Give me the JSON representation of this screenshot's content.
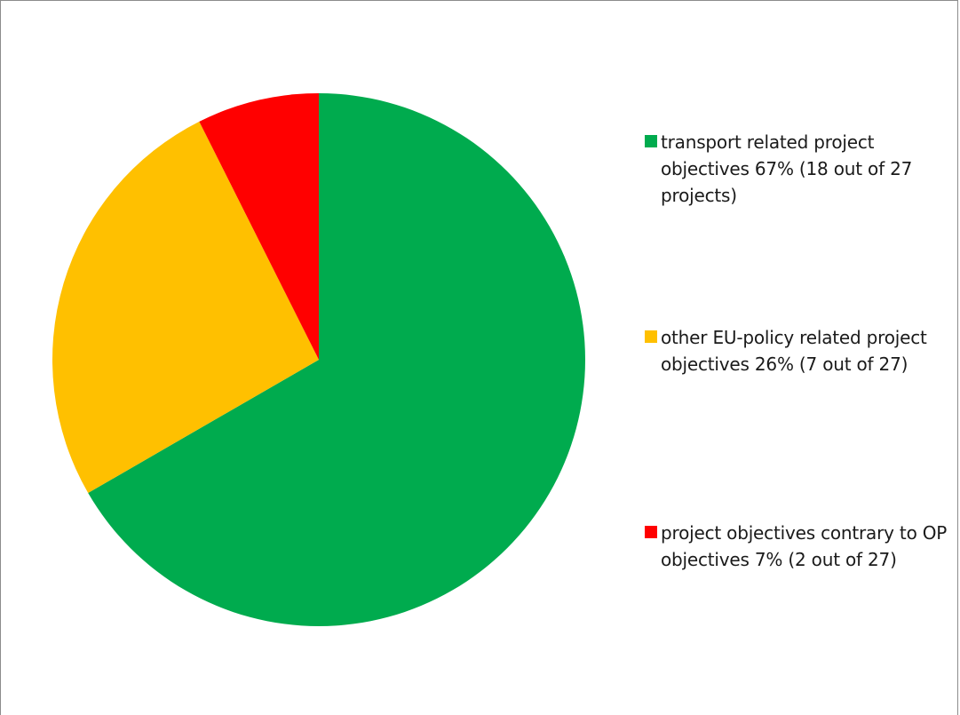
{
  "chart_data": {
    "type": "pie",
    "title": "",
    "legend_position": "right",
    "start_angle_deg": 0,
    "direction": "clockwise",
    "slices": [
      {
        "label": "transport related project objectives 67% (18 out of 27 projects)",
        "value": 18,
        "percent": 67,
        "color": "#00ab4e"
      },
      {
        "label": "other EU-policy related project objectives 26% (7 out of 27)",
        "value": 7,
        "percent": 26,
        "color": "#ffc000"
      },
      {
        "label": "project objectives contrary to OP objectives 7% (2 out of 27)",
        "value": 2,
        "percent": 7,
        "color": "#ff0000"
      }
    ]
  }
}
